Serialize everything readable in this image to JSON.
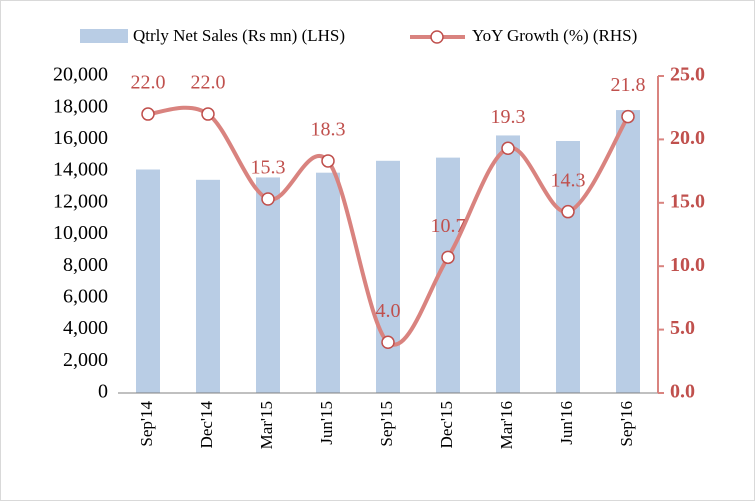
{
  "chart_data": {
    "type": "bar-line",
    "categories": [
      "Sep'14",
      "Dec'14",
      "Mar'15",
      "Jun'15",
      "Sep'15",
      "Dec'15",
      "Mar'16",
      "Jun'16",
      "Sep'16"
    ],
    "series": [
      {
        "name": "Qtrly Net Sales (Rs mn) (LHS)",
        "type": "bar",
        "color": "#b9cde5",
        "values": [
          14100,
          13450,
          13600,
          13900,
          14650,
          14850,
          16250,
          15900,
          17850
        ]
      },
      {
        "name": "YoY Growth (%) (RHS)",
        "type": "line",
        "axis": "y2",
        "color": "#d9837f",
        "marker_color": "#c0504d",
        "values": [
          22.0,
          22.0,
          15.3,
          18.3,
          4.0,
          10.7,
          19.3,
          14.3,
          21.8
        ],
        "value_labels": [
          "22.0",
          "22.0",
          "15.3",
          "18.3",
          "4.0",
          "10.7",
          "19.3",
          "14.3",
          "21.8"
        ]
      }
    ],
    "ylim": [
      0,
      20000
    ],
    "yticks": [
      0,
      {
        "value": 2000,
        "label": "2,000"
      },
      {
        "value": 4000,
        "label": "4,000"
      },
      {
        "value": 6000,
        "label": "6,000"
      },
      {
        "value": 8000,
        "label": "8,000"
      },
      {
        "value": 10000,
        "label": "10,000"
      },
      {
        "value": 12000,
        "label": "12,000"
      },
      {
        "value": 14000,
        "label": "14,000"
      },
      {
        "value": 16000,
        "label": "16,000"
      },
      {
        "value": 18000,
        "label": "18,000"
      },
      {
        "value": 20000,
        "label": "20,000"
      }
    ],
    "y2lim": [
      0,
      25
    ],
    "y2ticks": [
      {
        "value": 0,
        "label": "0.0"
      },
      {
        "value": 5,
        "label": "5.0"
      },
      {
        "value": 10,
        "label": "10.0"
      },
      {
        "value": 15,
        "label": "15.0"
      },
      {
        "value": 20,
        "label": "20.0"
      },
      {
        "value": 25,
        "label": "25.0"
      }
    ],
    "legend": "top"
  }
}
